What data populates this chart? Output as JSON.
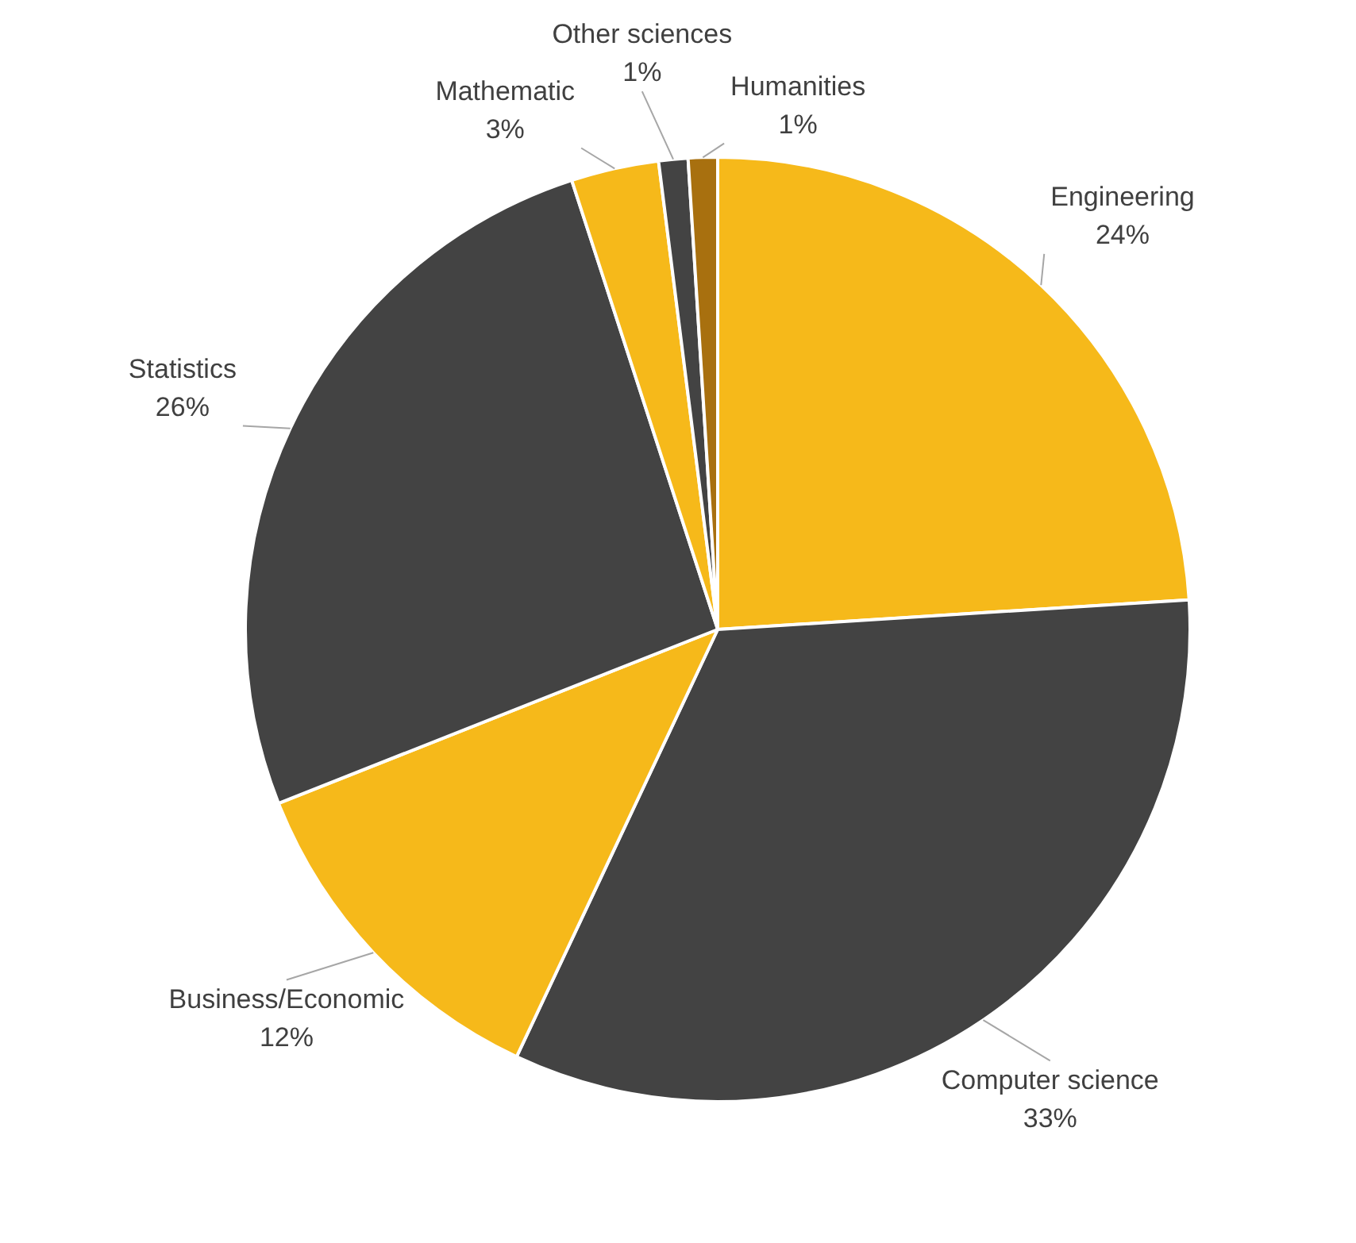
{
  "chart_data": {
    "type": "pie",
    "categories": [
      "Engineering",
      "Computer science",
      "Business/Economic",
      "Statistics",
      "Mathematic",
      "Other sciences",
      "Humanities"
    ],
    "values": [
      24,
      33,
      12,
      26,
      3,
      1,
      1
    ],
    "value_labels": [
      "24%",
      "33%",
      "12%",
      "26%",
      "3%",
      "1%",
      "1%"
    ],
    "colors": [
      "#f6b91a",
      "#434343",
      "#f6b91a",
      "#434343",
      "#f6b91a",
      "#434343",
      "#a8700f"
    ],
    "legend": false
  }
}
